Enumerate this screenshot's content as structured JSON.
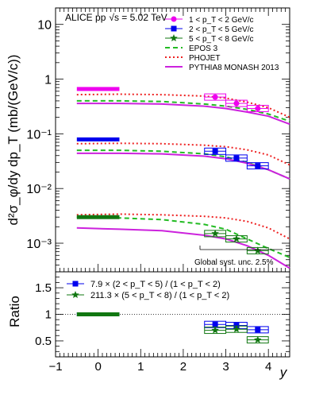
{
  "chart_data": [
    {
      "type": "scatter",
      "panel": "top",
      "annotation": "ALICE pp",
      "energy_label": "√s = 5.02 TeV",
      "ylabel": "d²σ_φ/dy dp_T (mb/(GeV/c))",
      "yscale": "log",
      "xlim": [
        -1,
        4.5
      ],
      "ylim": [
        0.0003,
        20
      ],
      "yticks": [
        "10⁻³",
        "10⁻²",
        "10⁻¹",
        "1",
        "10"
      ],
      "legend_position": "top-right",
      "global_syst_label": "Global syst. unc. 2.5%",
      "series": [
        {
          "name": "1 < p_T < 2 GeV/c",
          "color": "#ee00ee",
          "marker": "circle",
          "points": [
            {
              "x": 0.0,
              "y": 0.66,
              "xerr": 0.5
            },
            {
              "x": 2.75,
              "y": 0.47,
              "xerr": 0.25
            },
            {
              "x": 3.25,
              "y": 0.36,
              "xerr": 0.25
            },
            {
              "x": 3.75,
              "y": 0.29,
              "xerr": 0.25
            }
          ]
        },
        {
          "name": "2 < p_T < 5 GeV/c",
          "color": "#0000ee",
          "marker": "square",
          "points": [
            {
              "x": 0.0,
              "y": 0.079,
              "xerr": 0.5
            },
            {
              "x": 2.75,
              "y": 0.048,
              "xerr": 0.25
            },
            {
              "x": 3.25,
              "y": 0.036,
              "xerr": 0.25
            },
            {
              "x": 3.75,
              "y": 0.026,
              "xerr": 0.25
            }
          ]
        },
        {
          "name": "5 < p_T < 8 GeV/c",
          "color": "#117711",
          "marker": "star",
          "points": [
            {
              "x": 0.0,
              "y": 0.003,
              "xerr": 0.5
            },
            {
              "x": 2.75,
              "y": 0.0015,
              "xerr": 0.25
            },
            {
              "x": 3.25,
              "y": 0.0012,
              "xerr": 0.25
            },
            {
              "x": 3.75,
              "y": 0.00073,
              "xerr": 0.25
            }
          ]
        },
        {
          "name": "EPOS 3",
          "color": "#22bb22",
          "style": "dashed",
          "curves": [
            {
              "x": [
                -0.5,
                0.5,
                1.5,
                2.5,
                3.0,
                3.5,
                4.0,
                4.5
              ],
              "y": [
                0.4,
                0.4,
                0.39,
                0.35,
                0.32,
                0.28,
                0.23,
                0.17
              ]
            },
            {
              "x": [
                -0.5,
                0.5,
                1.5,
                2.5,
                3.0,
                3.5,
                4.0,
                4.5
              ],
              "y": [
                0.05,
                0.05,
                0.048,
                0.043,
                0.038,
                0.03,
                0.022,
                0.015
              ]
            },
            {
              "x": [
                -0.5,
                0.5,
                1.5,
                2.5,
                3.0,
                3.5,
                4.0,
                4.5
              ],
              "y": [
                0.003,
                0.0029,
                0.0027,
                0.0022,
                0.0018,
                0.0012,
                0.0008,
                0.00055
              ]
            }
          ]
        },
        {
          "name": "PHOJET",
          "color": "#ee2222",
          "style": "dotted",
          "curves": [
            {
              "x": [
                -0.5,
                0.5,
                1.5,
                2.5,
                3.0,
                3.5,
                4.0,
                4.5
              ],
              "y": [
                0.52,
                0.53,
                0.52,
                0.49,
                0.45,
                0.38,
                0.3,
                0.2
              ]
            },
            {
              "x": [
                -0.5,
                0.5,
                1.5,
                2.5,
                3.0,
                3.5,
                4.0,
                4.5
              ],
              "y": [
                0.066,
                0.067,
                0.066,
                0.062,
                0.058,
                0.051,
                0.041,
                0.027
              ]
            },
            {
              "x": [
                -0.5,
                0.5,
                1.5,
                2.5,
                3.0,
                3.5,
                4.0,
                4.5
              ],
              "y": [
                0.0033,
                0.0034,
                0.0033,
                0.0031,
                0.0029,
                0.0025,
                0.0019,
                0.0012
              ]
            }
          ]
        },
        {
          "name": "PYTHIA8 MONASH 2013",
          "color": "#cc22dd",
          "style": "solid",
          "curves": [
            {
              "x": [
                -0.5,
                0.5,
                1.5,
                2.5,
                3.0,
                3.5,
                4.0,
                4.5
              ],
              "y": [
                0.36,
                0.36,
                0.35,
                0.32,
                0.29,
                0.25,
                0.21,
                0.15
              ]
            },
            {
              "x": [
                -0.5,
                0.5,
                1.5,
                2.5,
                3.0,
                3.5,
                4.0,
                4.5
              ],
              "y": [
                0.044,
                0.044,
                0.043,
                0.039,
                0.035,
                0.029,
                0.022,
                0.015
              ]
            },
            {
              "x": [
                -0.5,
                0.5,
                1.5,
                2.5,
                3.0,
                3.5,
                4.0,
                4.5
              ],
              "y": [
                0.0019,
                0.0018,
                0.0017,
                0.0014,
                0.0012,
                0.0009,
                0.0006,
                0.00035
              ]
            }
          ]
        }
      ]
    },
    {
      "type": "scatter",
      "panel": "bottom",
      "ylabel": "Ratio",
      "xlabel": "y",
      "xlim": [
        -1,
        4.5
      ],
      "ylim": [
        0.2,
        1.8
      ],
      "xticks": [
        "−1",
        "0",
        "1",
        "2",
        "3",
        "4"
      ],
      "yticks": [
        "0.5",
        "1",
        "1.5"
      ],
      "reference_line": 1,
      "series": [
        {
          "name": "7.9 × (2 < p_T < 5) / (1 < p_T < 2)",
          "color": "#0000ee",
          "marker": "square",
          "points": [
            {
              "x": 0.0,
              "y": 1.0,
              "xerr": 0.5
            },
            {
              "x": 2.75,
              "y": 0.81,
              "xerr": 0.25
            },
            {
              "x": 3.25,
              "y": 0.79,
              "xerr": 0.25
            },
            {
              "x": 3.75,
              "y": 0.71,
              "xerr": 0.25
            }
          ]
        },
        {
          "name": "211.3 × (5 < p_T < 8) / (1 < p_T < 2)",
          "color": "#117711",
          "marker": "star",
          "points": [
            {
              "x": 0.0,
              "y": 1.0,
              "xerr": 0.5
            },
            {
              "x": 2.75,
              "y": 0.7,
              "xerr": 0.25
            },
            {
              "x": 3.25,
              "y": 0.72,
              "xerr": 0.25
            },
            {
              "x": 3.75,
              "y": 0.52,
              "xerr": 0.25
            }
          ]
        }
      ]
    }
  ]
}
